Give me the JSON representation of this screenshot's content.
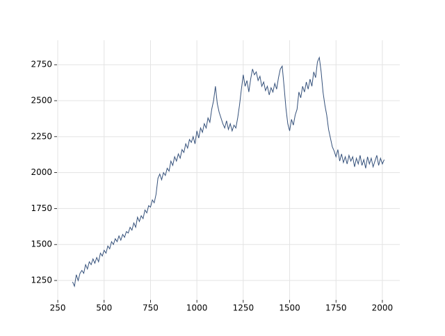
{
  "chart_data": {
    "type": "line",
    "x": [
      330,
      340,
      350,
      360,
      370,
      380,
      390,
      400,
      410,
      420,
      430,
      440,
      450,
      460,
      470,
      480,
      490,
      500,
      510,
      520,
      530,
      540,
      550,
      560,
      570,
      580,
      590,
      600,
      610,
      620,
      630,
      640,
      650,
      660,
      670,
      680,
      690,
      700,
      710,
      720,
      730,
      740,
      750,
      760,
      770,
      780,
      790,
      800,
      810,
      820,
      830,
      840,
      850,
      860,
      870,
      880,
      890,
      900,
      910,
      920,
      930,
      940,
      950,
      960,
      970,
      980,
      990,
      1000,
      1010,
      1020,
      1030,
      1040,
      1050,
      1060,
      1070,
      1080,
      1090,
      1100,
      1110,
      1120,
      1130,
      1140,
      1150,
      1160,
      1170,
      1180,
      1190,
      1200,
      1210,
      1220,
      1230,
      1240,
      1250,
      1260,
      1270,
      1280,
      1290,
      1300,
      1310,
      1320,
      1330,
      1340,
      1350,
      1360,
      1370,
      1380,
      1390,
      1400,
      1410,
      1420,
      1430,
      1440,
      1450,
      1460,
      1470,
      1480,
      1490,
      1500,
      1510,
      1520,
      1530,
      1540,
      1550,
      1560,
      1570,
      1580,
      1590,
      1600,
      1610,
      1620,
      1630,
      1640,
      1650,
      1660,
      1670,
      1680,
      1690,
      1700,
      1710,
      1720,
      1730,
      1740,
      1750,
      1760,
      1770,
      1780,
      1790,
      1800,
      1810,
      1820,
      1830,
      1840,
      1850,
      1860,
      1870,
      1880,
      1890,
      1900,
      1910,
      1920,
      1930,
      1940,
      1950,
      1960,
      1970,
      1980,
      1990,
      2000,
      2010
    ],
    "values": [
      1240,
      1210,
      1290,
      1250,
      1300,
      1320,
      1300,
      1360,
      1330,
      1380,
      1360,
      1400,
      1370,
      1410,
      1380,
      1440,
      1420,
      1460,
      1440,
      1490,
      1470,
      1520,
      1500,
      1540,
      1520,
      1560,
      1530,
      1570,
      1550,
      1590,
      1580,
      1620,
      1600,
      1650,
      1620,
      1690,
      1660,
      1700,
      1680,
      1740,
      1720,
      1770,
      1760,
      1810,
      1790,
      1850,
      1960,
      1990,
      1950,
      2000,
      1980,
      2030,
      2010,
      2080,
      2050,
      2110,
      2080,
      2130,
      2100,
      2160,
      2140,
      2200,
      2170,
      2230,
      2210,
      2250,
      2200,
      2290,
      2240,
      2310,
      2280,
      2340,
      2310,
      2380,
      2350,
      2440,
      2500,
      2600,
      2480,
      2420,
      2380,
      2340,
      2310,
      2360,
      2300,
      2340,
      2290,
      2330,
      2310,
      2380,
      2470,
      2580,
      2680,
      2600,
      2640,
      2560,
      2650,
      2720,
      2680,
      2700,
      2640,
      2670,
      2600,
      2630,
      2570,
      2600,
      2540,
      2590,
      2560,
      2620,
      2580,
      2660,
      2720,
      2740,
      2600,
      2450,
      2340,
      2290,
      2370,
      2330,
      2400,
      2440,
      2560,
      2520,
      2600,
      2560,
      2630,
      2580,
      2650,
      2600,
      2700,
      2660,
      2770,
      2800,
      2700,
      2560,
      2470,
      2400,
      2300,
      2240,
      2180,
      2150,
      2110,
      2160,
      2080,
      2130,
      2070,
      2110,
      2060,
      2120,
      2080,
      2110,
      2040,
      2100,
      2060,
      2120,
      2050,
      2090,
      2030,
      2110,
      2060,
      2100,
      2040,
      2080,
      2120,
      2050,
      2100,
      2060,
      2090
    ],
    "color": "#34507a",
    "xlim": [
      246,
      2094
    ],
    "ylim": [
      1115,
      2920
    ],
    "xticks": [
      250,
      500,
      750,
      1000,
      1250,
      1500,
      1750,
      2000
    ],
    "yticks": [
      1250,
      1500,
      1750,
      2000,
      2250,
      2500,
      2750
    ],
    "grid": true
  }
}
